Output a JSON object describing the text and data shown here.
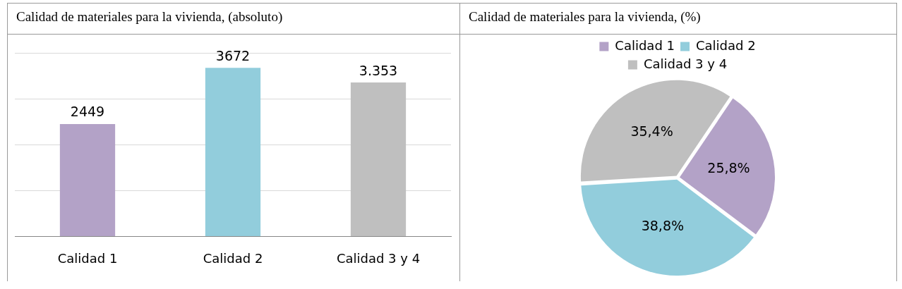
{
  "chart_data": [
    {
      "type": "bar",
      "title": "Calidad de materiales para la vivienda, (absoluto)",
      "categories": [
        "Calidad 1",
        "Calidad 2",
        "Calidad 3 y 4"
      ],
      "values": [
        2449,
        3672,
        3353
      ],
      "colors": [
        "#b3a2c7",
        "#92cddc",
        "#bfbfbf"
      ],
      "value_labels": [
        "2449",
        "3672",
        "3.353"
      ],
      "ylim": [
        0,
        4000
      ],
      "yticks": [
        {
          "value": 0,
          "label": null
        },
        {
          "value": 1000,
          "label": null
        },
        {
          "value": 2000,
          "label": null
        },
        {
          "value": 3000,
          "label": null
        },
        {
          "value": 4000,
          "label": null
        }
      ],
      "grid": "y",
      "tick_labels": "x",
      "legend": false
    },
    {
      "type": "pie",
      "title": "Calidad de materiales para la vivienda, (%)",
      "categories": [
        "Calidad 1",
        "Calidad 2",
        "Calidad 3 y 4"
      ],
      "values": [
        25.8,
        38.8,
        35.4
      ],
      "colors": [
        "#b3a2c7",
        "#92cddc",
        "#bfbfbf"
      ],
      "value_labels": [
        "25,8%",
        "38,8%",
        "35,4%"
      ],
      "legend": "top"
    }
  ]
}
